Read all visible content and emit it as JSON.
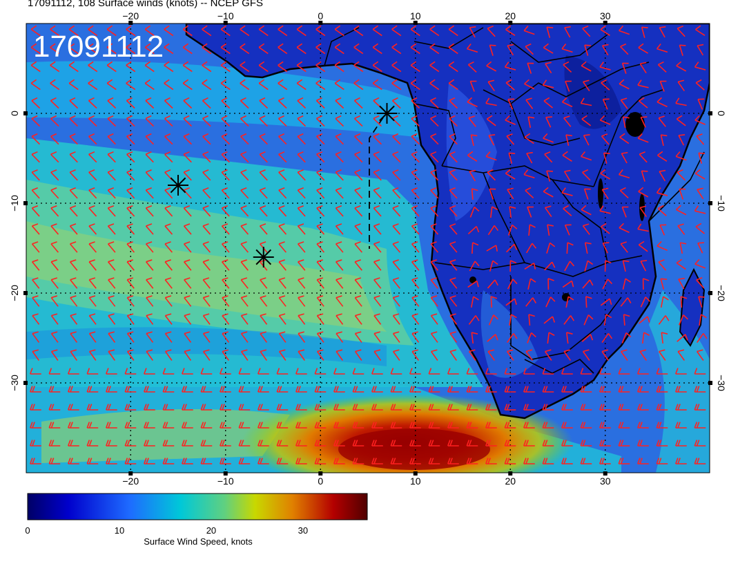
{
  "title": "17091112, 108 Surface winds (knots) -- NCEP GFS",
  "stamp": "17091112",
  "map": {
    "lon_range": [
      -31,
      41
    ],
    "lat_range": [
      -40,
      10
    ],
    "lon_ticks": [
      -20,
      -10,
      0,
      10,
      20,
      30
    ],
    "lat_ticks": [
      0,
      -10,
      -20,
      -30
    ],
    "lon_tick_labels": [
      "−20",
      "−10",
      "0",
      "10",
      "20",
      "30"
    ],
    "lat_tick_labels": [
      "0",
      "−10",
      "−20",
      "−30"
    ],
    "grid": "dotted",
    "barb_color": "#ff2020",
    "markers": [
      {
        "name": "marker-a",
        "lon": -15,
        "lat": -8
      },
      {
        "name": "marker-b",
        "lon": -6,
        "lat": -16
      },
      {
        "name": "marker-c",
        "lon": 7,
        "lat": 0
      }
    ]
  },
  "colorbar": {
    "label": "Surface Wind Speed, knots",
    "range": [
      0,
      37
    ],
    "ticks": [
      0,
      10,
      20,
      30
    ],
    "tick_labels": [
      "0",
      "10",
      "20",
      "30"
    ],
    "colors": [
      "#000066",
      "#0000cc",
      "#1e6bff",
      "#00c8d8",
      "#c8d800",
      "#e08000",
      "#b40000",
      "#500000"
    ]
  }
}
